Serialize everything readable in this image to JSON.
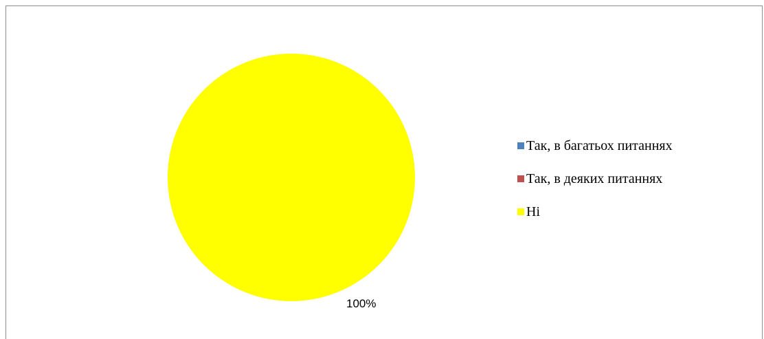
{
  "chart_data": {
    "type": "pie",
    "title": "",
    "categories": [
      "Так, в багатьох питаннях",
      "Так, в деяких питаннях",
      "Ні"
    ],
    "values": [
      0,
      0,
      100
    ],
    "colors": [
      "#4f81bd",
      "#c0504d",
      "#ffff00"
    ],
    "data_labels": [
      "",
      "",
      "100%"
    ],
    "legend_position": "right"
  }
}
